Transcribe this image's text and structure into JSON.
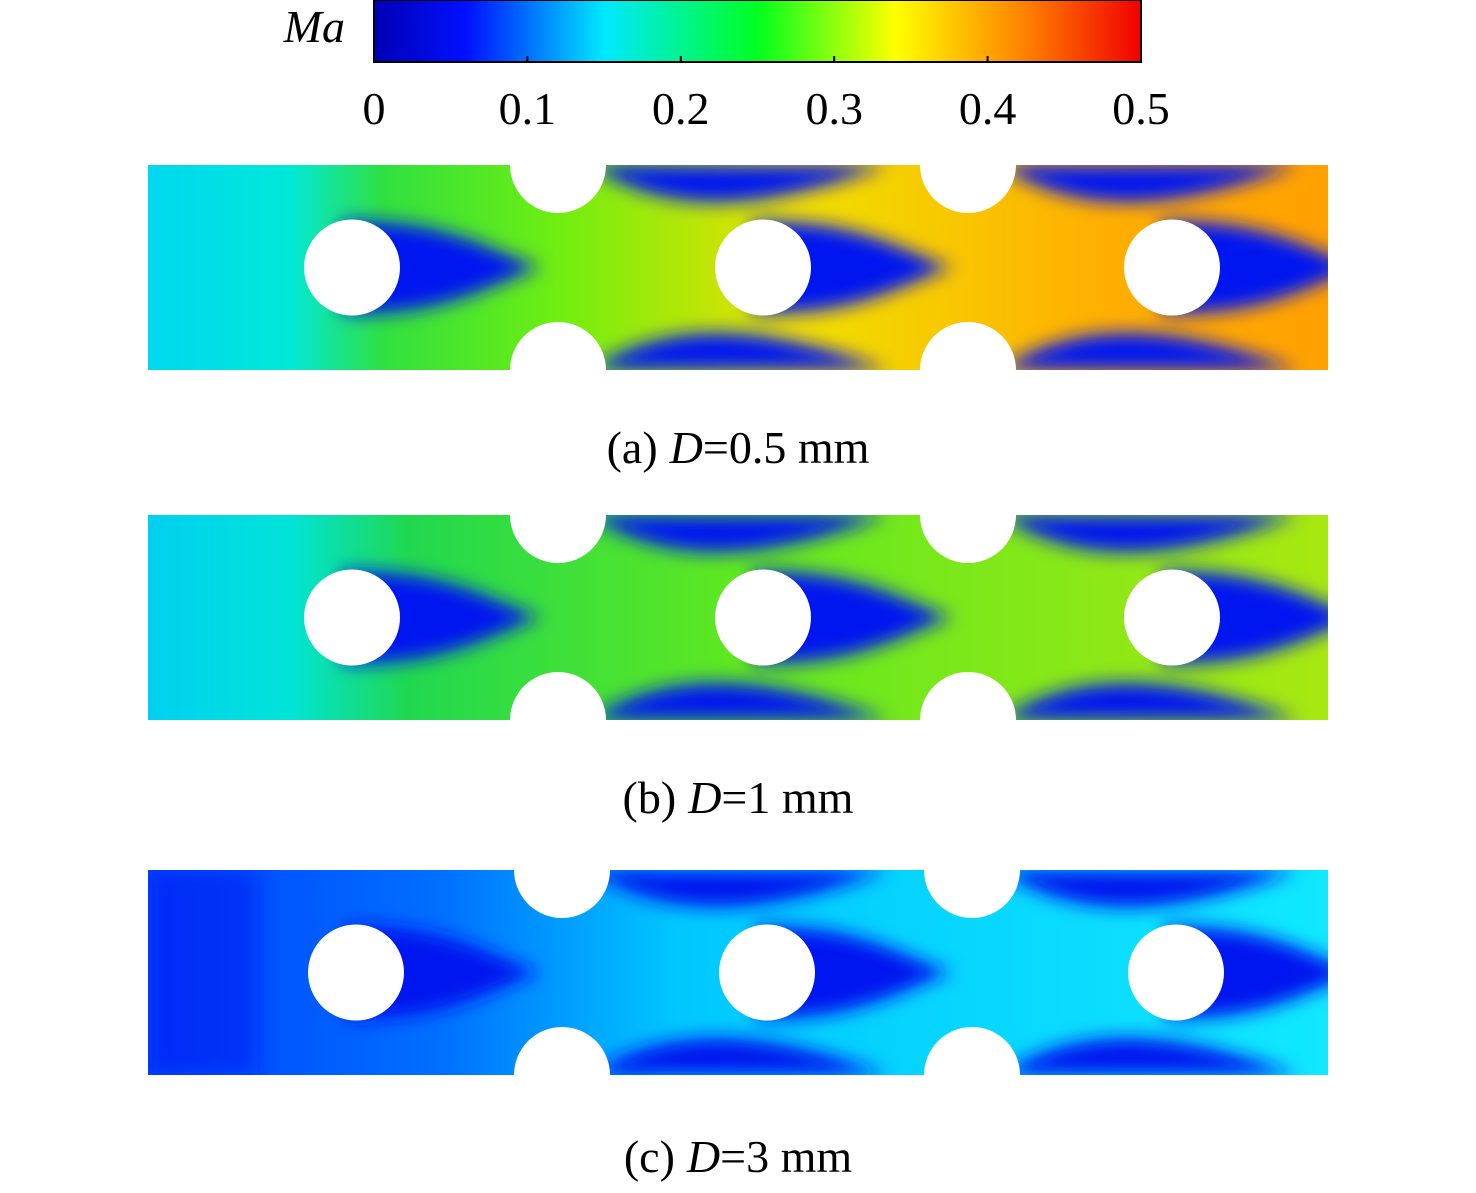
{
  "colorbar": {
    "label": "Ma",
    "range": [
      0,
      0.5
    ],
    "ticks": [
      0,
      0.1,
      0.2,
      0.3,
      0.4,
      0.5
    ]
  },
  "panels": [
    {
      "label": "(a)",
      "variable": "D",
      "value": "=0.5 mm"
    },
    {
      "label": "(b)",
      "variable": "D",
      "value": "=1 mm"
    },
    {
      "label": "(c)",
      "variable": "D",
      "value": "=3 mm"
    }
  ]
}
